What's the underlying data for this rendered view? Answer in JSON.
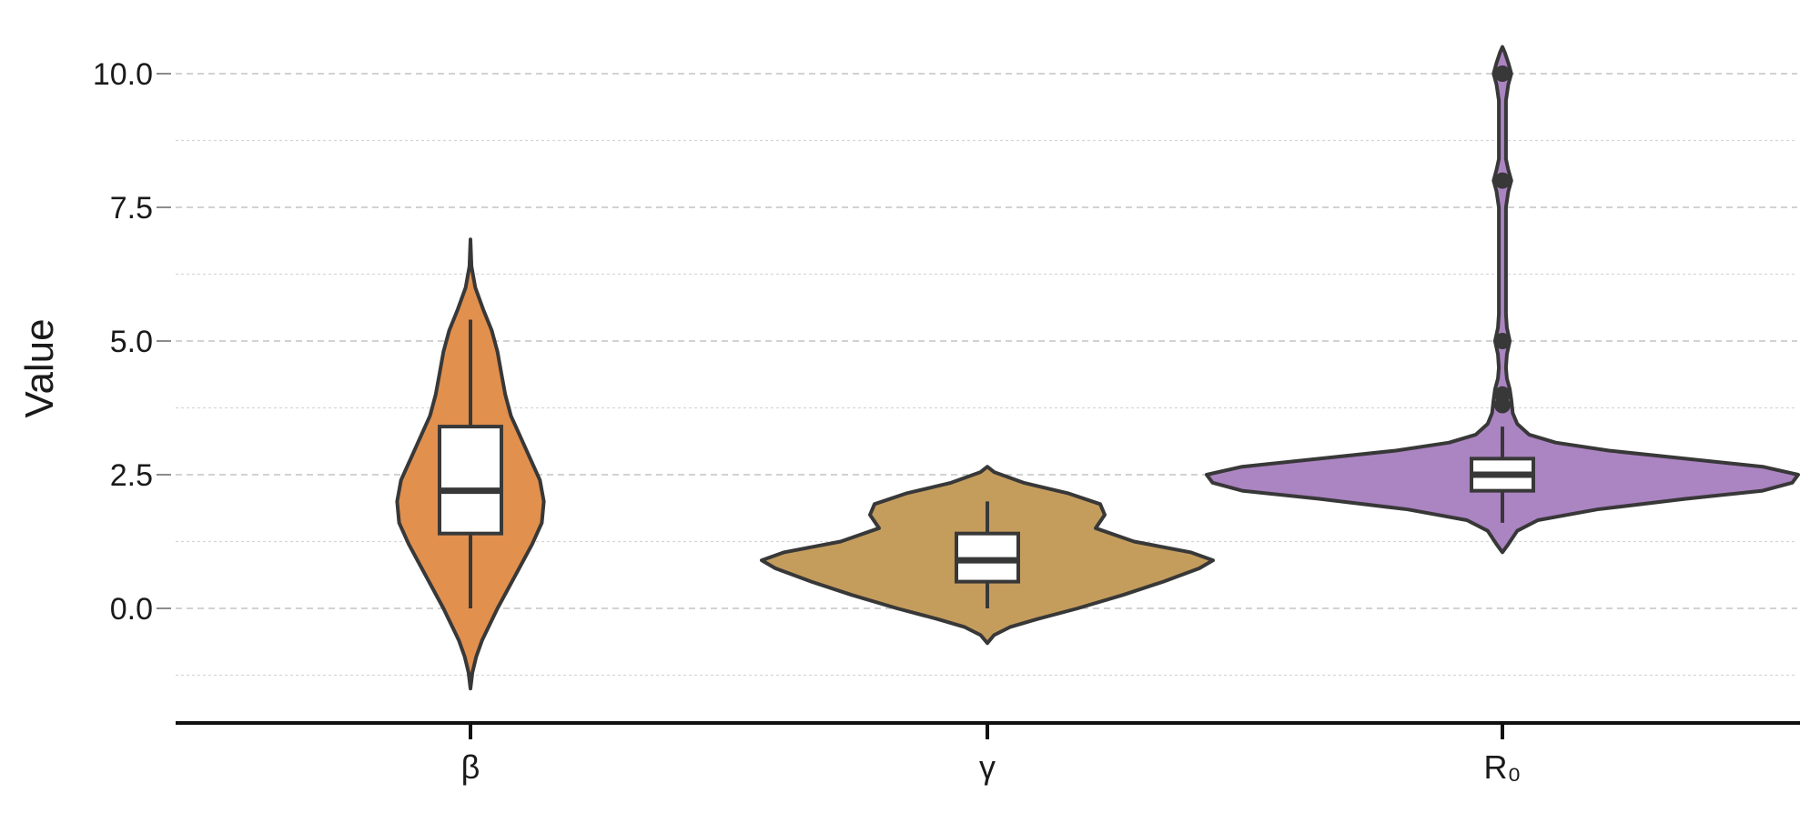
{
  "chart_data": {
    "type": "violin",
    "title": "",
    "xlabel": "",
    "ylabel": "Value",
    "ylim": [
      -2.1,
      10.8
    ],
    "y_ticks": [
      {
        "value": 0,
        "label": "0.0"
      },
      {
        "value": 2.5,
        "label": "2.5"
      },
      {
        "value": 5,
        "label": "5.0"
      },
      {
        "value": 7.5,
        "label": "7.5"
      },
      {
        "value": 10,
        "label": "10.0"
      }
    ],
    "y_minor_gridlines": [
      -1.25,
      1.25,
      3.75,
      6.25,
      8.75
    ],
    "grid": "horizontal dashed",
    "categories": [
      "β",
      "γ",
      "R₀"
    ],
    "series": [
      {
        "category": "β",
        "color": "#E2904E",
        "box": {
          "q1": 1.4,
          "median": 2.2,
          "q3": 3.4,
          "whisker_low": 0.0,
          "whisker_high": 5.4
        },
        "outliers": [],
        "density": [
          [
            -1.5,
            0.0
          ],
          [
            -1.2,
            0.02
          ],
          [
            -0.9,
            0.06
          ],
          [
            -0.6,
            0.12
          ],
          [
            -0.3,
            0.2
          ],
          [
            0.0,
            0.28
          ],
          [
            0.4,
            0.4
          ],
          [
            0.8,
            0.52
          ],
          [
            1.2,
            0.64
          ],
          [
            1.6,
            0.74
          ],
          [
            2.0,
            0.76
          ],
          [
            2.4,
            0.72
          ],
          [
            2.8,
            0.62
          ],
          [
            3.2,
            0.52
          ],
          [
            3.6,
            0.42
          ],
          [
            4.0,
            0.36
          ],
          [
            4.4,
            0.32
          ],
          [
            4.8,
            0.28
          ],
          [
            5.2,
            0.22
          ],
          [
            5.6,
            0.13
          ],
          [
            6.0,
            0.05
          ],
          [
            6.4,
            0.01
          ],
          [
            6.9,
            0.0
          ]
        ]
      },
      {
        "category": "γ",
        "color": "#C49D5D",
        "box": {
          "q1": 0.5,
          "median": 0.9,
          "q3": 1.4,
          "whisker_low": 0.0,
          "whisker_high": 2.0
        },
        "outliers": [],
        "density": [
          [
            -0.65,
            0.0
          ],
          [
            -0.5,
            0.03
          ],
          [
            -0.35,
            0.1
          ],
          [
            -0.2,
            0.22
          ],
          [
            0.0,
            0.4
          ],
          [
            0.25,
            0.6
          ],
          [
            0.5,
            0.78
          ],
          [
            0.75,
            0.94
          ],
          [
            0.9,
            1.0
          ],
          [
            1.05,
            0.9
          ],
          [
            1.25,
            0.65
          ],
          [
            1.5,
            0.48
          ],
          [
            1.75,
            0.52
          ],
          [
            1.95,
            0.5
          ],
          [
            2.15,
            0.36
          ],
          [
            2.35,
            0.16
          ],
          [
            2.55,
            0.03
          ],
          [
            2.65,
            0.0
          ]
        ]
      },
      {
        "category": "R₀",
        "color": "#AB84C2",
        "box": {
          "q1": 2.2,
          "median": 2.5,
          "q3": 2.8,
          "whisker_low": 1.6,
          "whisker_high": 3.4
        },
        "outliers": [
          3.8,
          4.0,
          5.0,
          8.0,
          10.0
        ],
        "density": [
          [
            1.05,
            0.0
          ],
          [
            1.2,
            0.02
          ],
          [
            1.45,
            0.05
          ],
          [
            1.65,
            0.12
          ],
          [
            1.85,
            0.32
          ],
          [
            2.05,
            0.62
          ],
          [
            2.2,
            0.88
          ],
          [
            2.35,
            0.98
          ],
          [
            2.5,
            1.0
          ],
          [
            2.65,
            0.88
          ],
          [
            2.8,
            0.62
          ],
          [
            2.95,
            0.36
          ],
          [
            3.1,
            0.18
          ],
          [
            3.25,
            0.09
          ],
          [
            3.45,
            0.05
          ],
          [
            3.65,
            0.035
          ],
          [
            3.9,
            0.03
          ],
          [
            4.1,
            0.025
          ],
          [
            4.3,
            0.015
          ],
          [
            4.5,
            0.012
          ],
          [
            4.75,
            0.015
          ],
          [
            5.0,
            0.025
          ],
          [
            5.25,
            0.015
          ],
          [
            5.5,
            0.012
          ],
          [
            6.5,
            0.012
          ],
          [
            7.5,
            0.012
          ],
          [
            7.8,
            0.02
          ],
          [
            8.0,
            0.03
          ],
          [
            8.2,
            0.02
          ],
          [
            8.4,
            0.012
          ],
          [
            9.5,
            0.012
          ],
          [
            9.8,
            0.02
          ],
          [
            10.0,
            0.03
          ],
          [
            10.2,
            0.02
          ],
          [
            10.4,
            0.008
          ],
          [
            10.5,
            0.0
          ]
        ]
      }
    ]
  }
}
